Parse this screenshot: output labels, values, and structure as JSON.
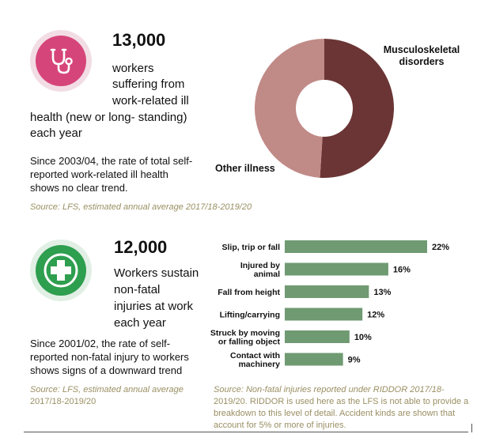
{
  "ill_health": {
    "number": "13,000",
    "line1": "workers",
    "line2": "suffering from",
    "line3": "work-related ill",
    "line4": "health (new or long- standing)",
    "line5": "each year",
    "trend1": "Since 2003/04, the rate of total self-",
    "trend2": "reported work-related ill health",
    "trend3": "shows no clear trend.",
    "source": "Source: LFS, estimated annual average 2017/18-2019/20",
    "icon": "stethoscope-icon"
  },
  "injury": {
    "number": "12,000",
    "line1": "Workers sustain",
    "line2": "non-fatal",
    "line3": "injuries at work",
    "line4": "each year",
    "trend1": "Since 2001/02, the rate of self-",
    "trend2": "reported non-fatal injury to workers",
    "trend3": "shows signs of a downward trend",
    "source1": "Source: LFS, estimated annual average",
    "source2": "2017/18-2019/20",
    "icon": "medical-cross-icon"
  },
  "bar_source": {
    "line1": "Source: Non-fatal injuries reported under RIDDOR 2017/18-",
    "line2": "2019/20. RIDDOR is used here as the LFS is not able to provide a",
    "line3": "breakdown to this level of detail. Accident kinds are shown that",
    "line4": "account for 5% or more of injuries."
  },
  "colors": {
    "pink_icon": "#d6457a",
    "green_icon": "#2e9e4f",
    "musculoskeletal": "#6b3535",
    "other_illness": "#c08a87",
    "bar": "#6f9a72",
    "source_text": "#9a8f63"
  },
  "chart_data": [
    {
      "type": "pie",
      "labels": [
        "Musculoskeletal disorders",
        "Other illness"
      ],
      "values": [
        51,
        49
      ],
      "legend": "direct labels"
    },
    {
      "type": "bar",
      "orientation": "horizontal",
      "categories": [
        "Slip, trip or fall",
        "Injured by animal",
        "Fall from height",
        "Lifting/carrying",
        "Struck by moving or falling object",
        "Contact with machinery"
      ],
      "values": [
        22,
        16,
        13,
        12,
        10,
        9
      ],
      "value_labels": [
        "22%",
        "16%",
        "13%",
        "12%",
        "10%",
        "9%"
      ],
      "unit": "%"
    }
  ]
}
